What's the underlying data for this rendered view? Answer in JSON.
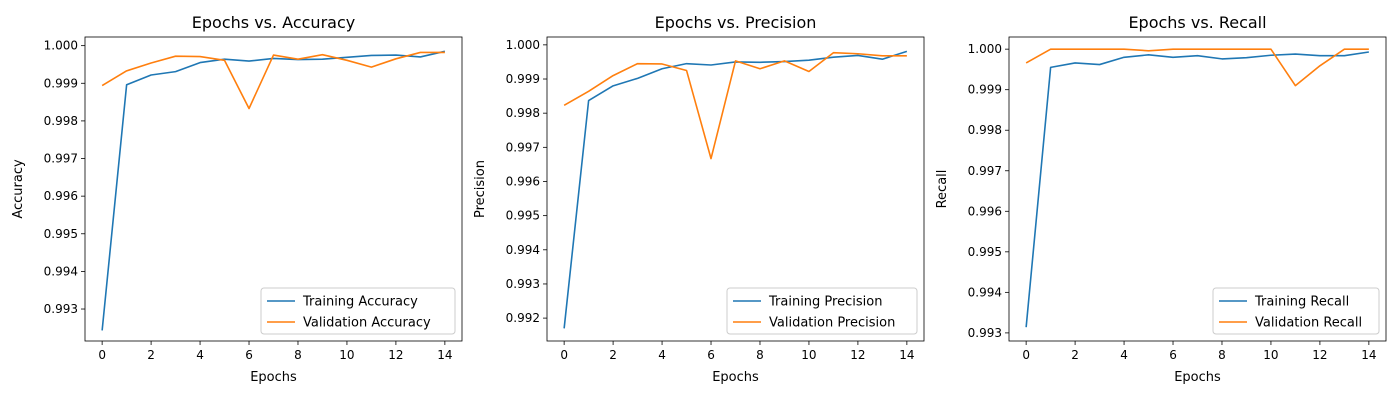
{
  "chart_data": [
    {
      "type": "line",
      "title": "Epochs vs. Accuracy",
      "xlabel": "Epochs",
      "ylabel": "Accuracy",
      "x": [
        0,
        1,
        2,
        3,
        4,
        5,
        6,
        7,
        8,
        9,
        10,
        11,
        12,
        13,
        14
      ],
      "xlim": [
        -0.7,
        14.7
      ],
      "ylim": [
        0.99215,
        1.00023
      ],
      "xticks": [
        0,
        2,
        4,
        6,
        8,
        10,
        12,
        14
      ],
      "yticks": [
        0.993,
        0.994,
        0.995,
        0.996,
        0.997,
        0.998,
        0.999,
        1.0
      ],
      "ytick_labels": [
        "0.993",
        "0.994",
        "0.995",
        "0.996",
        "0.997",
        "0.998",
        "0.999",
        "1.000"
      ],
      "legend_loc": "lower right",
      "series": [
        {
          "name": "Training Accuracy",
          "color": "#1f77b4",
          "values": [
            0.99243,
            0.99896,
            0.99922,
            0.99931,
            0.99955,
            0.99964,
            0.99959,
            0.99966,
            0.99963,
            0.99964,
            0.99969,
            0.99974,
            0.99975,
            0.9997,
            0.99985
          ]
        },
        {
          "name": "Validation Accuracy",
          "color": "#ff7f0e",
          "values": [
            0.99894,
            0.99933,
            0.99954,
            0.99972,
            0.99971,
            0.99961,
            0.99833,
            0.99975,
            0.99964,
            0.99976,
            0.99961,
            0.99943,
            0.99965,
            0.99982,
            0.99982
          ]
        }
      ]
    },
    {
      "type": "line",
      "title": "Epochs vs. Precision",
      "xlabel": "Epochs",
      "ylabel": "Precision",
      "x": [
        0,
        1,
        2,
        3,
        4,
        5,
        6,
        7,
        8,
        9,
        10,
        11,
        12,
        13,
        14
      ],
      "xlim": [
        -0.7,
        14.7
      ],
      "ylim": [
        0.99133,
        1.00023
      ],
      "xticks": [
        0,
        2,
        4,
        6,
        8,
        10,
        12,
        14
      ],
      "yticks": [
        0.992,
        0.993,
        0.994,
        0.995,
        0.996,
        0.997,
        0.998,
        0.999,
        1.0
      ],
      "ytick_labels": [
        "0.992",
        "0.993",
        "0.994",
        "0.995",
        "0.996",
        "0.997",
        "0.998",
        "0.999",
        "1.000"
      ],
      "legend_loc": "lower right",
      "series": [
        {
          "name": "Training Precision",
          "color": "#1f77b4",
          "values": [
            0.9917,
            0.99837,
            0.9988,
            0.99902,
            0.9993,
            0.99945,
            0.99941,
            0.9995,
            0.99949,
            0.99951,
            0.99955,
            0.99964,
            0.99969,
            0.99958,
            0.99981
          ]
        },
        {
          "name": "Validation Precision",
          "color": "#ff7f0e",
          "values": [
            0.99823,
            0.99864,
            0.9991,
            0.99945,
            0.99944,
            0.99925,
            0.99667,
            0.99953,
            0.9993,
            0.99953,
            0.99922,
            0.99977,
            0.99974,
            0.99968,
            0.99968
          ]
        }
      ]
    },
    {
      "type": "line",
      "title": "Epochs vs. Recall",
      "xlabel": "Epochs",
      "ylabel": "Recall",
      "x": [
        0,
        1,
        2,
        3,
        4,
        5,
        6,
        7,
        8,
        9,
        10,
        11,
        12,
        13,
        14
      ],
      "xlim": [
        -0.7,
        14.7
      ],
      "ylim": [
        0.9928,
        1.0003
      ],
      "xticks": [
        0,
        2,
        4,
        6,
        8,
        10,
        12,
        14
      ],
      "yticks": [
        0.993,
        0.994,
        0.995,
        0.996,
        0.997,
        0.998,
        0.999,
        1.0
      ],
      "ytick_labels": [
        "0.993",
        "0.994",
        "0.995",
        "0.996",
        "0.997",
        "0.998",
        "0.999",
        "1.000"
      ],
      "legend_loc": "lower right",
      "series": [
        {
          "name": "Training Recall",
          "color": "#1f77b4",
          "values": [
            0.99314,
            0.99955,
            0.99966,
            0.99962,
            0.9998,
            0.99986,
            0.9998,
            0.99984,
            0.99976,
            0.99979,
            0.99985,
            0.99988,
            0.99984,
            0.99984,
            0.99993
          ]
        },
        {
          "name": "Validation Recall",
          "color": "#ff7f0e",
          "values": [
            0.99966,
            1.0,
            1.0,
            1.0,
            1.0,
            0.99996,
            1.0,
            1.0,
            1.0,
            1.0,
            1.0,
            0.9991,
            0.99959,
            1.0,
            1.0
          ]
        }
      ]
    }
  ]
}
